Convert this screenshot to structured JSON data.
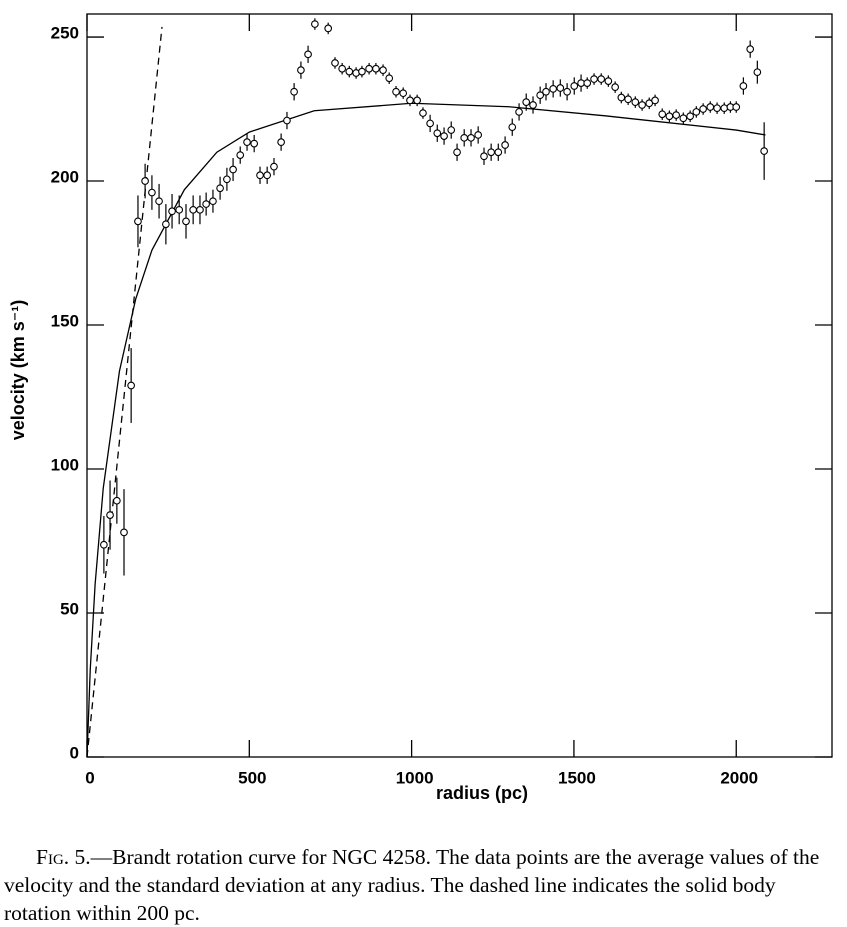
{
  "chart_data": {
    "type": "scatter",
    "xlabel": "radius (pc)",
    "ylabel": "velocity (km s⁻¹)",
    "xlim": [
      0,
      2295
    ],
    "ylim": [
      0,
      258
    ],
    "xticks": [
      0,
      500,
      1000,
      1500,
      2000
    ],
    "yticks": [
      0,
      50,
      100,
      150,
      200,
      250
    ],
    "color": "#000000",
    "points": {
      "x": [
        52,
        71,
        92,
        114,
        136,
        157,
        179,
        200,
        222,
        243,
        262,
        284,
        305,
        327,
        348,
        367,
        388,
        410,
        431,
        450,
        472,
        493,
        515,
        533,
        555,
        576,
        598,
        616,
        638,
        659,
        681,
        702,
        743,
        764,
        786,
        808,
        829,
        847,
        869,
        890,
        912,
        931,
        952,
        974,
        995,
        1017,
        1035,
        1057,
        1079,
        1100,
        1122,
        1140,
        1162,
        1183,
        1205,
        1223,
        1245,
        1267,
        1288,
        1310,
        1331,
        1353,
        1374,
        1396,
        1414,
        1436,
        1458,
        1479,
        1501,
        1522,
        1541,
        1562,
        1584,
        1606,
        1627,
        1646,
        1667,
        1689,
        1710,
        1732,
        1750,
        1772,
        1794,
        1815,
        1837,
        1858,
        1877,
        1898,
        1920,
        1941,
        1963,
        1982,
        2000,
        2022,
        2043,
        2065,
        2086
      ],
      "values": [
        73.7,
        84,
        89,
        78,
        129,
        186,
        200,
        196,
        193,
        185,
        189.5,
        190,
        186,
        190,
        190,
        192,
        193,
        197.5,
        200.6,
        204,
        209,
        213.5,
        213,
        202,
        202,
        205,
        213.5,
        221,
        231,
        238.5,
        244,
        254.5,
        253,
        241,
        239,
        238,
        237.5,
        238,
        239,
        239,
        238.5,
        235.7,
        231,
        230.5,
        228,
        228,
        223.6,
        220,
        216.6,
        215.6,
        217.7,
        210,
        215,
        215,
        216,
        208.6,
        210,
        210,
        212.5,
        218.7,
        224,
        227.4,
        226.4,
        229.8,
        231,
        232,
        232.3,
        231,
        233,
        234,
        234,
        235.4,
        235.4,
        234.7,
        232.6,
        229,
        228.4,
        227.4,
        226.4,
        227,
        228,
        223.2,
        222.5,
        222.9,
        221.8,
        222.5,
        224,
        225,
        225.7,
        225.3,
        225.3,
        225.7,
        225.7,
        233,
        245.8,
        237.8,
        210.4
      ],
      "errors": [
        10,
        12,
        8,
        15,
        13,
        9,
        6,
        6,
        6,
        7,
        6,
        5,
        6,
        5,
        5,
        4,
        4,
        4,
        4,
        4,
        3,
        3,
        3,
        3,
        3,
        3,
        3,
        3,
        3,
        3,
        3,
        2,
        2,
        2,
        2,
        2,
        2,
        2,
        2,
        2,
        2,
        2,
        2,
        2,
        2,
        2,
        2,
        3,
        3,
        3,
        3,
        3,
        3,
        3,
        3,
        3,
        3,
        3,
        3,
        3,
        3,
        3,
        3,
        3,
        3,
        3,
        3,
        3,
        3,
        3,
        2,
        2,
        2,
        2,
        2,
        2,
        2,
        2,
        2,
        2,
        2,
        2,
        2,
        2,
        2,
        2,
        2,
        2,
        2,
        2,
        2,
        2,
        2,
        3,
        3,
        4,
        10
      ]
    },
    "model": {
      "x": [
        0,
        10,
        25,
        50,
        100,
        150,
        200,
        300,
        400,
        500,
        700,
        1000,
        1300,
        1600,
        2000,
        2090
      ],
      "values": [
        0,
        30.4,
        60,
        93.3,
        134,
        159,
        176,
        197,
        210,
        217,
        224.4,
        227,
        225.8,
        222.6,
        217.7,
        216
      ]
    },
    "solid_body": {
      "x": [
        0,
        231
      ],
      "values": [
        0,
        253.5
      ]
    }
  },
  "caption": {
    "label": "Fig. 5.",
    "text": "—Brandt rotation curve for NGC 4258. The data points are the average values of the velocity and the standard deviation at any radius. The dashed line indicates the solid body rotation within 200 pc."
  }
}
